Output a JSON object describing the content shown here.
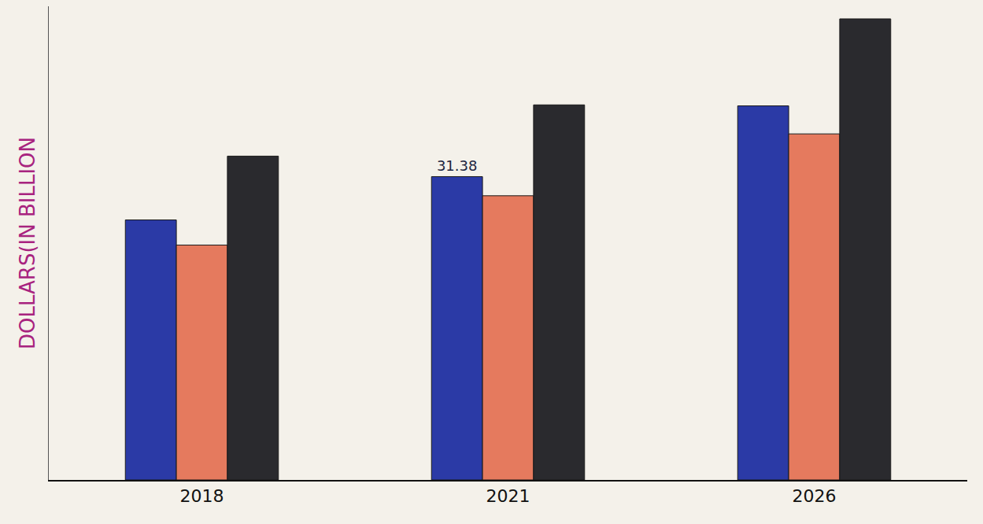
{
  "chart_data": {
    "type": "bar",
    "y_label": "DOLLARS(IN BILLION",
    "categories": [
      "2018",
      "2021",
      "2026"
    ],
    "series": [
      {
        "color": "#2b3aa6",
        "values": [
          26.9,
          31.38,
          38.7
        ],
        "value_labels": [
          null,
          "31.38",
          null
        ]
      },
      {
        "color": "#e57a5e",
        "values": [
          24.3,
          29.4,
          35.8
        ]
      },
      {
        "color": "#2a2a2e",
        "values": [
          33.5,
          38.8,
          47.7
        ]
      }
    ],
    "ylim": [
      0,
      49
    ],
    "grid": false,
    "tick_labels": "x"
  }
}
